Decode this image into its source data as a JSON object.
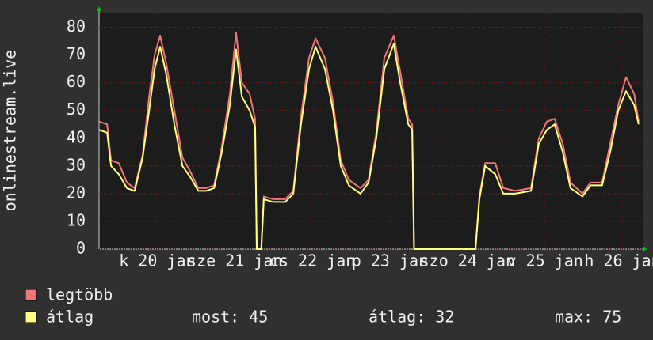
{
  "chart_data": {
    "type": "line",
    "y_label": "onlinestream.live",
    "xlim": [
      0,
      168
    ],
    "xticks": [
      {
        "value": 18,
        "label": "k 20 jan"
      },
      {
        "value": 42,
        "label": "sze 21 jan"
      },
      {
        "value": 66,
        "label": "cs 22 jan"
      },
      {
        "value": 90,
        "label": "p 23 jan"
      },
      {
        "value": 114,
        "label": "szo 24 jan"
      },
      {
        "value": 138,
        "label": "v 25 jan"
      },
      {
        "value": 162,
        "label": "h 26 jan"
      }
    ],
    "ylim": [
      0,
      85
    ],
    "yticks": [
      0,
      10,
      20,
      30,
      40,
      50,
      60,
      70,
      80
    ],
    "grid": true,
    "x": [
      0,
      2.5,
      3.7,
      6.1,
      8.6,
      11,
      13.5,
      15.5,
      17.2,
      18.9,
      20.8,
      23.3,
      25.8,
      28.2,
      30.7,
      33.1,
      35.6,
      38,
      40.5,
      42.4,
      44.2,
      46.6,
      48.3,
      48.8,
      50.2,
      51,
      53.9,
      57.6,
      60.1,
      62.5,
      65,
      67,
      69.9,
      72.4,
      74.8,
      77.3,
      80.9,
      83.4,
      85.8,
      88.3,
      91.2,
      93.2,
      95.7,
      96.9,
      97.5,
      116.5,
      117.7,
      119.5,
      122.6,
      125.1,
      128.8,
      133.7,
      136.1,
      138.6,
      141,
      143.5,
      145.9,
      149.6,
      152.1,
      155.7,
      158.2,
      160.7,
      163.1,
      165.6,
      167
    ],
    "series": [
      {
        "name": "legtöbb",
        "color": "#f07575",
        "values": [
          46,
          45,
          32,
          31,
          24,
          22,
          34,
          55,
          70,
          77,
          67,
          50,
          33,
          28,
          22,
          22,
          23,
          37,
          56,
          78,
          60,
          56,
          47,
          0,
          0,
          19,
          18,
          18,
          21,
          48,
          69,
          76,
          69,
          53,
          32,
          25,
          22,
          25,
          42,
          69,
          77,
          64,
          47,
          45,
          0,
          0,
          19,
          31,
          31,
          22,
          21,
          22,
          40,
          46,
          47,
          38,
          24,
          20,
          24,
          24,
          38,
          52,
          62,
          56,
          46
        ]
      },
      {
        "name": "átlag",
        "color": "#ffff80",
        "values": [
          43,
          42,
          30,
          27,
          22,
          21,
          33,
          50,
          65,
          73,
          63,
          45,
          30,
          26,
          21,
          21,
          22,
          35,
          52,
          72,
          55,
          50,
          44,
          0,
          0,
          18,
          17,
          17,
          20,
          45,
          65,
          73,
          65,
          50,
          30,
          23,
          20,
          24,
          40,
          65,
          74,
          60,
          45,
          43,
          0,
          0,
          18,
          30,
          27,
          20,
          20,
          21,
          38,
          43,
          45,
          35,
          22,
          19,
          23,
          23,
          35,
          50,
          57,
          52,
          45
        ]
      }
    ],
    "legend_stats": [
      "most: 45",
      "átlag: 32",
      "max: 75"
    ]
  }
}
